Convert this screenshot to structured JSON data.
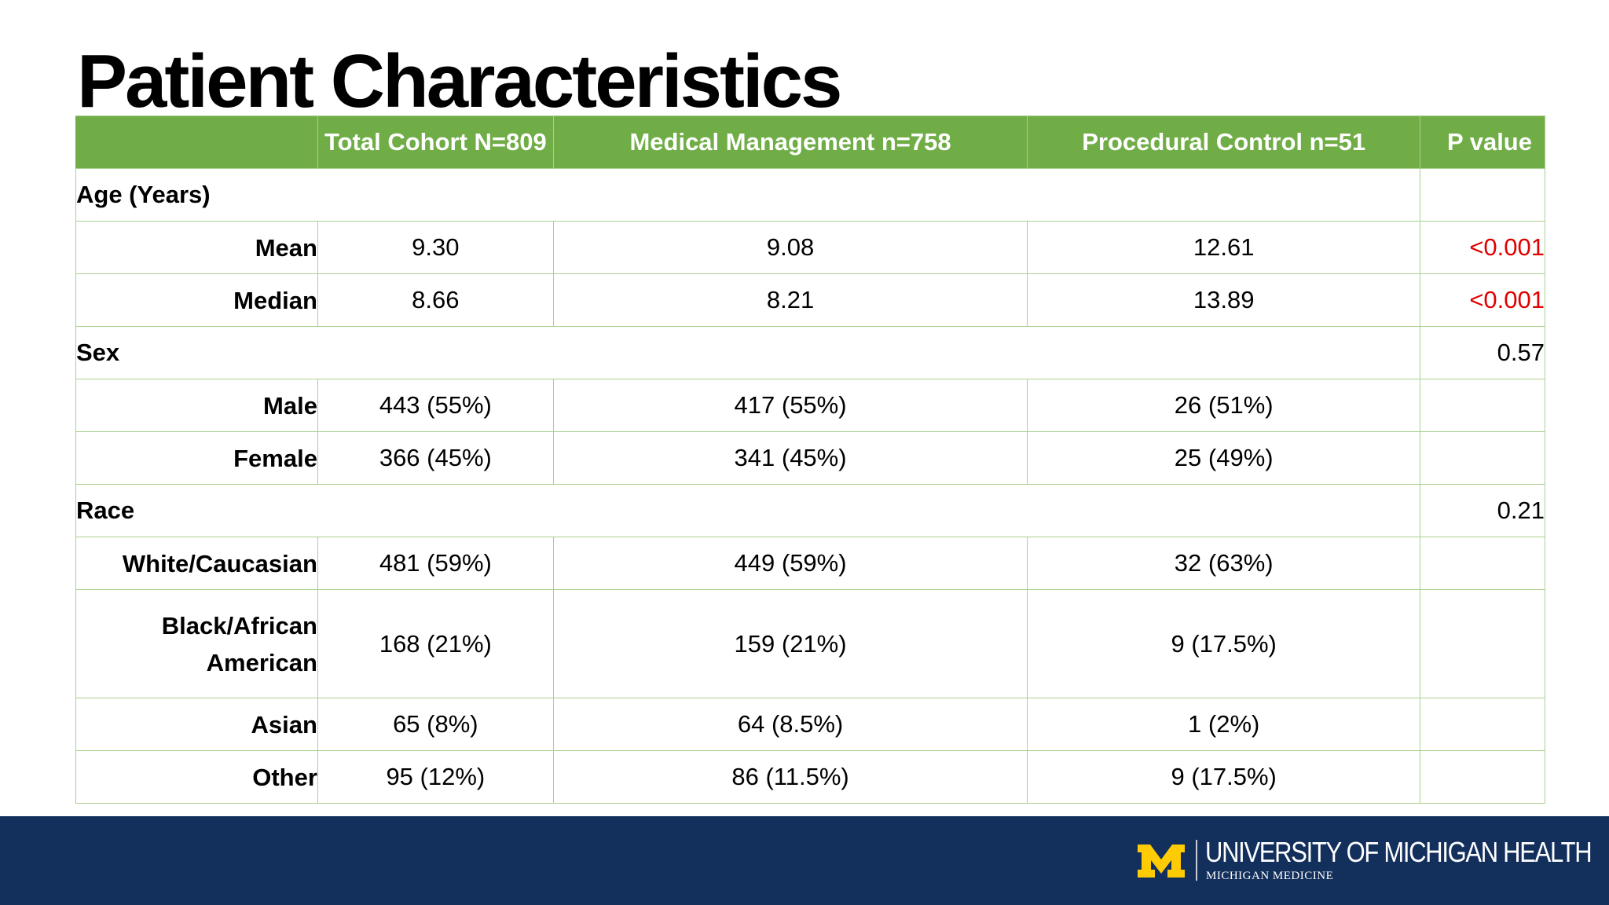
{
  "title": "Patient Characteristics",
  "colors": {
    "header_bg": "#70ad47",
    "border": "#a9d08e",
    "significant": "#e00000",
    "footer_bg": "#132f5c"
  },
  "table": {
    "headers": [
      "",
      "Total Cohort N=809",
      "Medical Management n=758",
      "Procedural Control n=51",
      "P value"
    ],
    "rows": [
      {
        "section": "Age (Years)",
        "p": ""
      },
      {
        "label": "Mean",
        "total": "9.30",
        "medical": "9.08",
        "procedural": "12.61",
        "p": "<0.001"
      },
      {
        "label": "Median",
        "total": "8.66",
        "medical": "8.21",
        "procedural": "13.89",
        "p": "<0.001"
      },
      {
        "section": "Sex",
        "p": "0.57"
      },
      {
        "label": "Male",
        "total": "443 (55%)",
        "medical": "417 (55%)",
        "procedural": "26 (51%)",
        "p": ""
      },
      {
        "label": "Female",
        "total": "366 (45%)",
        "medical": "341 (45%)",
        "procedural": "25 (49%)",
        "p": ""
      },
      {
        "section": "Race",
        "p": "0.21"
      },
      {
        "label": "White/Caucasian",
        "total": "481 (59%)",
        "medical": "449 (59%)",
        "procedural": "32 (63%)",
        "p": ""
      },
      {
        "label": "Black/African American",
        "total": "168 (21%)",
        "medical": "159 (21%)",
        "procedural": "9 (17.5%)",
        "p": ""
      },
      {
        "label": "Asian",
        "total": "65 (8%)",
        "medical": "64 (8.5%)",
        "procedural": "1 (2%)",
        "p": ""
      },
      {
        "label": "Other",
        "total": "95 (12%)",
        "medical": "86 (11.5%)",
        "procedural": "9 (17.5%)",
        "p": ""
      }
    ]
  },
  "footer": {
    "logo_main": "UNIVERSITY OF MICHIGAN HEALTH",
    "logo_sub": "MICHIGAN MEDICINE",
    "logo_icon": "block-m-logo-icon"
  }
}
